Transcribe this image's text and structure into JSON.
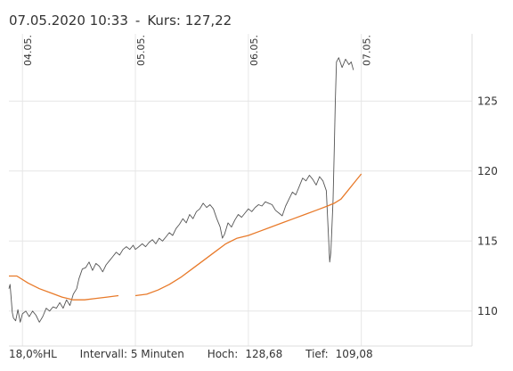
{
  "header": {
    "date": "07.05.2020 10:33",
    "separator": "-",
    "kurs_label": "Kurs:",
    "kurs_value": "127,22"
  },
  "footer": {
    "hl": "18,0%HL",
    "intervall": "Intervall: 5 Minuten",
    "hoch_label": "Hoch:",
    "hoch_value": "128,68",
    "tief_label": "Tief:",
    "tief_value": "109,08"
  },
  "chart_data": {
    "type": "line",
    "title": "",
    "xlabel": "",
    "ylabel": "",
    "ylim": [
      107.5,
      129.8
    ],
    "y_ticks": [
      110,
      115,
      120,
      125
    ],
    "y_tick_labels": [
      "110",
      "115",
      "120",
      "125"
    ],
    "x_ticks": [
      {
        "label": "04.05.",
        "pos": 0
      },
      {
        "label": "05.05.",
        "pos": 1
      },
      {
        "label": "06.05.",
        "pos": 2
      },
      {
        "label": "07.05.",
        "pos": 3
      }
    ],
    "xlim": [
      -0.12,
      3.98
    ],
    "grid": true,
    "series": [
      {
        "color": "#555555",
        "points": [
          [
            -0.12,
            111.6
          ],
          [
            -0.11,
            111.9
          ],
          [
            -0.09,
            109.9
          ],
          [
            -0.08,
            109.5
          ],
          [
            -0.06,
            109.3
          ],
          [
            -0.04,
            110.1
          ],
          [
            -0.02,
            109.2
          ],
          [
            0.0,
            109.8
          ],
          [
            0.03,
            110.0
          ],
          [
            0.06,
            109.6
          ],
          [
            0.09,
            110.0
          ],
          [
            0.12,
            109.7
          ],
          [
            0.15,
            109.2
          ],
          [
            0.18,
            109.6
          ],
          [
            0.21,
            110.2
          ],
          [
            0.24,
            110.0
          ],
          [
            0.27,
            110.3
          ],
          [
            0.3,
            110.2
          ],
          [
            0.33,
            110.6
          ],
          [
            0.36,
            110.2
          ],
          [
            0.39,
            110.8
          ],
          [
            0.42,
            110.4
          ],
          [
            0.45,
            111.2
          ],
          [
            0.48,
            111.6
          ],
          [
            0.5,
            112.3
          ],
          [
            0.53,
            113.0
          ],
          [
            0.56,
            113.1
          ],
          [
            0.59,
            113.5
          ],
          [
            0.62,
            112.9
          ],
          [
            0.65,
            113.4
          ],
          [
            0.68,
            113.2
          ],
          [
            0.71,
            112.8
          ],
          [
            0.74,
            113.3
          ],
          [
            0.77,
            113.6
          ],
          [
            0.8,
            113.9
          ],
          [
            0.83,
            114.2
          ],
          [
            0.86,
            114.0
          ],
          [
            0.89,
            114.4
          ],
          [
            0.92,
            114.6
          ],
          [
            0.95,
            114.4
          ],
          [
            0.98,
            114.7
          ],
          [
            1.0,
            114.4
          ],
          [
            1.03,
            114.6
          ],
          [
            1.06,
            114.8
          ],
          [
            1.09,
            114.6
          ],
          [
            1.12,
            114.9
          ],
          [
            1.15,
            115.1
          ],
          [
            1.18,
            114.8
          ],
          [
            1.21,
            115.2
          ],
          [
            1.24,
            115.0
          ],
          [
            1.27,
            115.3
          ],
          [
            1.3,
            115.6
          ],
          [
            1.33,
            115.4
          ],
          [
            1.36,
            115.9
          ],
          [
            1.39,
            116.2
          ],
          [
            1.42,
            116.6
          ],
          [
            1.45,
            116.3
          ],
          [
            1.48,
            116.9
          ],
          [
            1.51,
            116.6
          ],
          [
            1.54,
            117.1
          ],
          [
            1.57,
            117.3
          ],
          [
            1.6,
            117.7
          ],
          [
            1.63,
            117.4
          ],
          [
            1.66,
            117.6
          ],
          [
            1.69,
            117.3
          ],
          [
            1.72,
            116.6
          ],
          [
            1.75,
            116.0
          ],
          [
            1.77,
            115.2
          ],
          [
            1.79,
            115.5
          ],
          [
            1.82,
            116.3
          ],
          [
            1.85,
            116.0
          ],
          [
            1.88,
            116.5
          ],
          [
            1.91,
            116.9
          ],
          [
            1.94,
            116.7
          ],
          [
            1.97,
            117.0
          ],
          [
            2.0,
            117.3
          ],
          [
            2.03,
            117.1
          ],
          [
            2.06,
            117.4
          ],
          [
            2.09,
            117.6
          ],
          [
            2.12,
            117.5
          ],
          [
            2.15,
            117.8
          ],
          [
            2.18,
            117.7
          ],
          [
            2.21,
            117.6
          ],
          [
            2.24,
            117.2
          ],
          [
            2.27,
            117.0
          ],
          [
            2.3,
            116.8
          ],
          [
            2.33,
            117.5
          ],
          [
            2.36,
            118.0
          ],
          [
            2.39,
            118.5
          ],
          [
            2.42,
            118.3
          ],
          [
            2.45,
            118.9
          ],
          [
            2.48,
            119.5
          ],
          [
            2.51,
            119.3
          ],
          [
            2.54,
            119.7
          ],
          [
            2.57,
            119.4
          ],
          [
            2.6,
            119.0
          ],
          [
            2.63,
            119.6
          ],
          [
            2.66,
            119.3
          ],
          [
            2.69,
            118.6
          ],
          [
            2.72,
            113.5
          ],
          [
            2.73,
            114.2
          ],
          [
            2.74,
            116.0
          ],
          [
            2.75,
            118.0
          ],
          [
            2.76,
            121.5
          ],
          [
            2.77,
            125.0
          ],
          [
            2.78,
            127.8
          ],
          [
            2.8,
            128.1
          ],
          [
            2.83,
            127.4
          ],
          [
            2.86,
            128.0
          ],
          [
            2.89,
            127.6
          ],
          [
            2.91,
            127.8
          ],
          [
            2.93,
            127.22
          ]
        ]
      },
      {
        "color": "#e87a2a",
        "points": [
          [
            -0.12,
            112.5
          ],
          [
            -0.05,
            112.5
          ],
          [
            0.05,
            112.0
          ],
          [
            0.15,
            111.6
          ],
          [
            0.25,
            111.3
          ],
          [
            0.35,
            111.0
          ],
          [
            0.45,
            110.8
          ],
          [
            0.55,
            110.8
          ],
          [
            0.65,
            110.9
          ],
          [
            0.75,
            111.0
          ],
          [
            0.85,
            111.1
          ]
        ]
      },
      {
        "color": "#e87a2a",
        "points": [
          [
            1.0,
            111.1
          ],
          [
            1.1,
            111.2
          ],
          [
            1.2,
            111.5
          ],
          [
            1.3,
            111.9
          ],
          [
            1.4,
            112.4
          ],
          [
            1.5,
            113.0
          ],
          [
            1.6,
            113.6
          ],
          [
            1.7,
            114.2
          ],
          [
            1.8,
            114.8
          ],
          [
            1.9,
            115.2
          ],
          [
            2.0,
            115.4
          ],
          [
            2.1,
            115.7
          ],
          [
            2.2,
            116.0
          ],
          [
            2.3,
            116.3
          ],
          [
            2.4,
            116.6
          ],
          [
            2.5,
            116.9
          ],
          [
            2.6,
            117.2
          ],
          [
            2.7,
            117.5
          ],
          [
            2.76,
            117.7
          ],
          [
            2.82,
            118.0
          ],
          [
            2.88,
            118.6
          ],
          [
            2.94,
            119.2
          ],
          [
            3.0,
            119.8
          ]
        ]
      }
    ]
  }
}
